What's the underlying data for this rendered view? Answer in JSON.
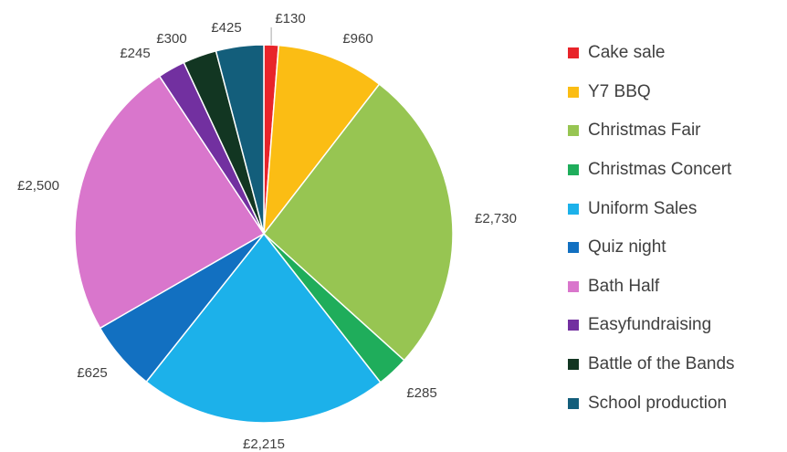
{
  "chart_data": {
    "type": "pie",
    "title": "",
    "start_angle_deg": 0,
    "direction": "clockwise",
    "legend_position": "right",
    "slices": [
      {
        "name": "Cake sale",
        "value": 130,
        "label": "£130",
        "color": "#e8242a"
      },
      {
        "name": "Y7 BBQ",
        "value": 960,
        "label": "£960",
        "color": "#fbbd14"
      },
      {
        "name": "Christmas Fair",
        "value": 2730,
        "label": "£2,730",
        "color": "#97c552"
      },
      {
        "name": "Christmas Concert",
        "value": 285,
        "label": "£285",
        "color": "#1fad5b"
      },
      {
        "name": "Uniform Sales",
        "value": 2215,
        "label": "£2,215",
        "color": "#1cb1ea"
      },
      {
        "name": "Quiz night",
        "value": 625,
        "label": "£625",
        "color": "#1270c1"
      },
      {
        "name": "Bath Half",
        "value": 2500,
        "label": "£2,500",
        "color": "#d976cc"
      },
      {
        "name": "Easyfundraising",
        "value": 245,
        "label": "£245",
        "color": "#7230a0"
      },
      {
        "name": "Battle of the Bands",
        "value": 300,
        "label": "£300",
        "color": "#123622"
      },
      {
        "name": "School production",
        "value": 425,
        "label": "£425",
        "color": "#135e7b"
      }
    ]
  }
}
